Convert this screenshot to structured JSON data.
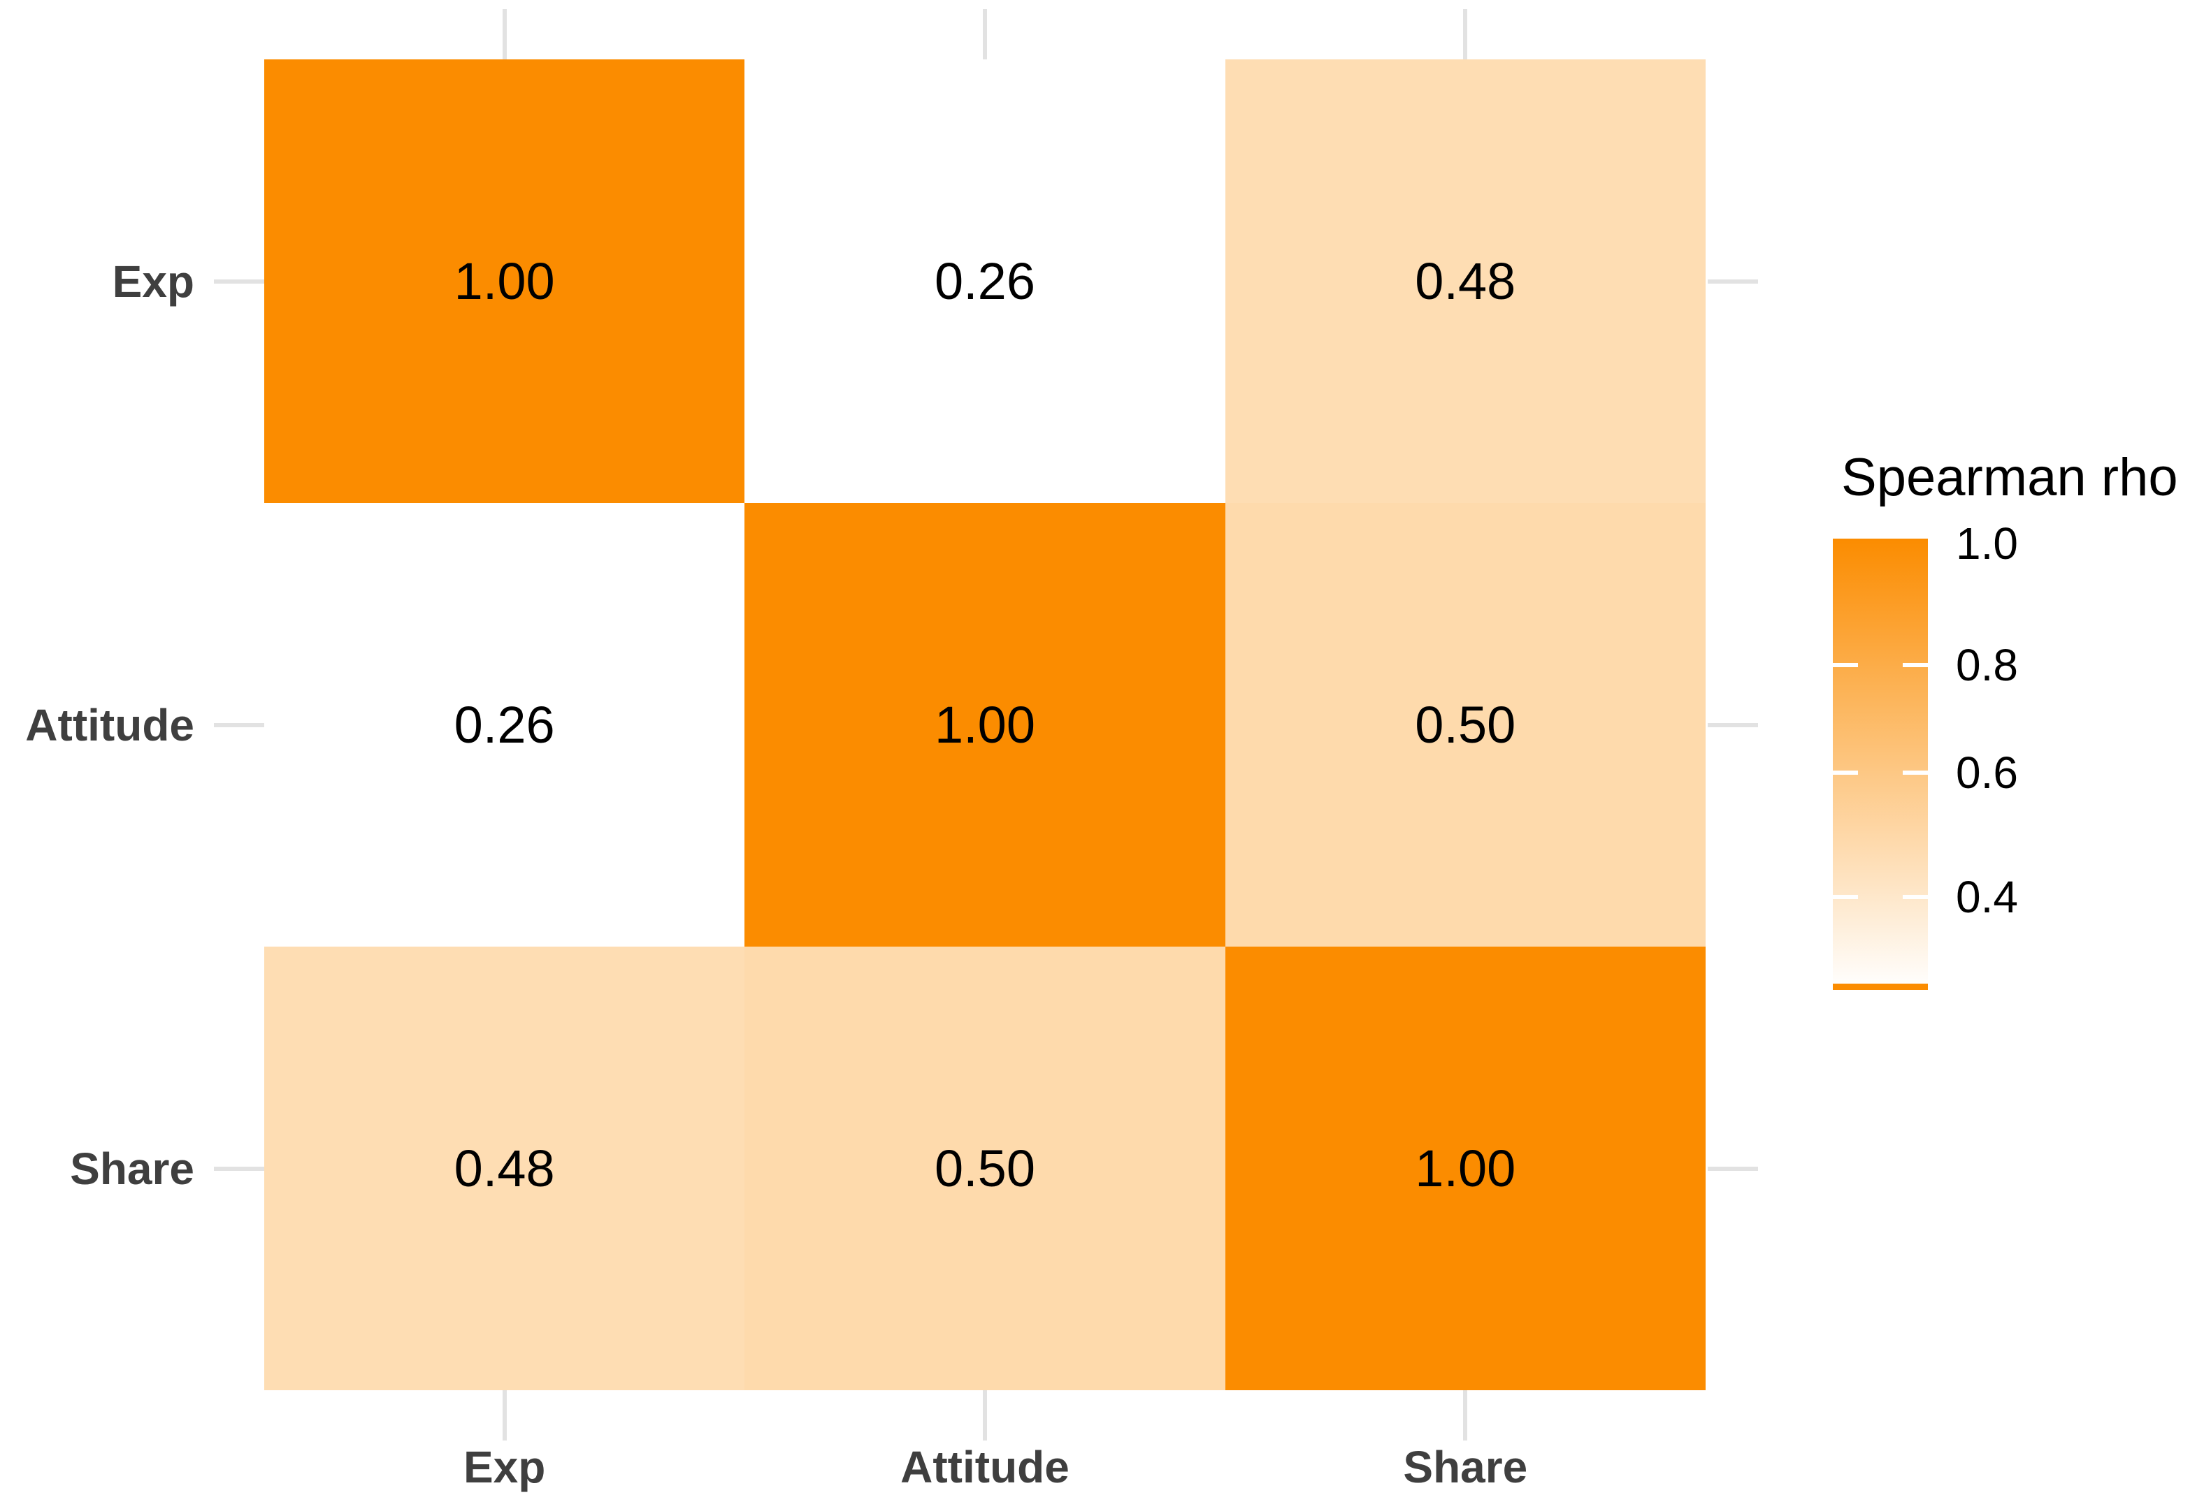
{
  "chart_data": {
    "type": "heatmap",
    "title": "",
    "x_labels": [
      "Exp",
      "Attitude",
      "Share"
    ],
    "y_labels": [
      "Exp",
      "Attitude",
      "Share"
    ],
    "matrix": [
      [
        1.0,
        0.26,
        0.48
      ],
      [
        0.26,
        1.0,
        0.5
      ],
      [
        0.48,
        0.5,
        1.0
      ]
    ],
    "value_decimals": 2,
    "color_scale": {
      "low_color": "#FFFFFF",
      "high_color": "#FB8C00",
      "min": 0.26,
      "max": 1.0
    },
    "legend": {
      "title": "Spearman rho",
      "tick_labels": [
        "1.0",
        "0.8",
        "0.6",
        "0.4"
      ]
    },
    "layout_hints": {
      "grid": "off",
      "legend_position": "right",
      "axis_ticks": "all four sides, light gray"
    }
  }
}
